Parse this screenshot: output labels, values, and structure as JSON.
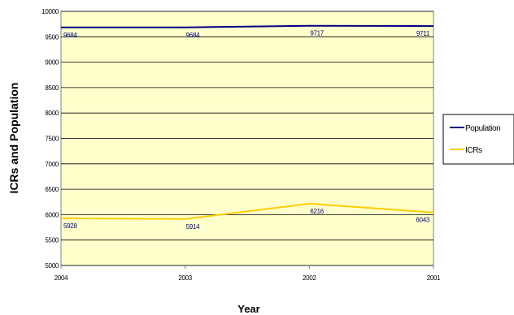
{
  "chart_data": {
    "type": "line",
    "title": "",
    "xlabel": "Year",
    "ylabel": "ICRs and Population",
    "categories": [
      "2004",
      "2003",
      "2002",
      "2001"
    ],
    "ylim": [
      5000,
      10000
    ],
    "ytick_step": 500,
    "yticks": [
      "5000",
      "5500",
      "6000",
      "6500",
      "7000",
      "7500",
      "8000",
      "8500",
      "9000",
      "9500",
      "10000"
    ],
    "grid": true,
    "legend_position": "right",
    "plot_background": "#ffffcc",
    "series": [
      {
        "name": "Population",
        "color": "#000080",
        "values": [
          9684,
          9684,
          9717,
          9711
        ],
        "labels": [
          "9684",
          "9684",
          "9717",
          "9711"
        ]
      },
      {
        "name": "ICRs",
        "color": "#ffcc00",
        "values": [
          5928,
          5914,
          6216,
          6043
        ],
        "labels": [
          "5928",
          "5914",
          "6216",
          "6043"
        ]
      }
    ]
  }
}
